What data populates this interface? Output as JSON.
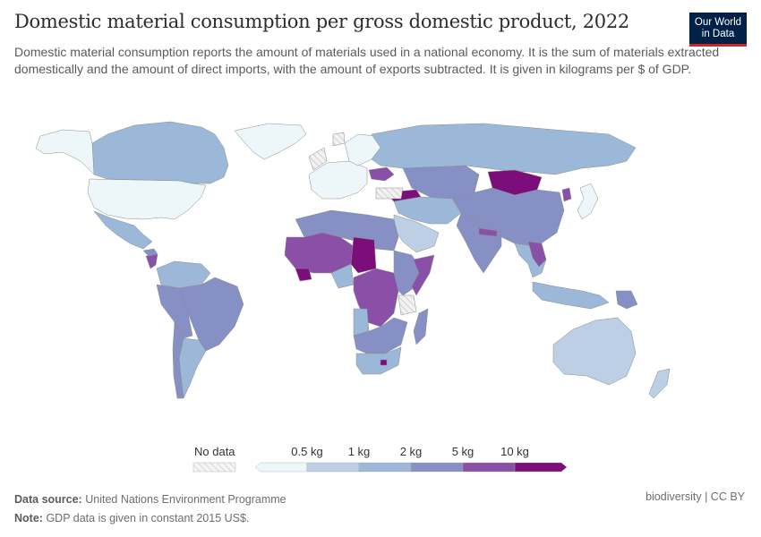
{
  "header": {
    "title": "Domestic material consumption per gross domestic product, 2022",
    "subtitle": "Domestic material consumption reports the amount of materials used in a national economy. It is the sum of materials extracted domestically and the amount of direct imports, with the amount of exports subtracted. It is given in kilograms per $ of GDP.",
    "logo_line1": "Our World",
    "logo_line2": "in Data"
  },
  "legend": {
    "no_data_label": "No data",
    "bins": [
      {
        "label": "",
        "color": "#edf7fa"
      },
      {
        "label": "0.5 kg",
        "color": "#bccfe4"
      },
      {
        "label": "1 kg",
        "color": "#9bb8d8"
      },
      {
        "label": "2 kg",
        "color": "#8790c4"
      },
      {
        "label": "5 kg",
        "color": "#8a4fa6"
      },
      {
        "label": "10 kg",
        "color": "#7b0e7b"
      }
    ],
    "ticks": [
      "0.5 kg",
      "1 kg",
      "2 kg",
      "5 kg",
      "10 kg"
    ]
  },
  "colors": {
    "no_data": "#e6e6e6",
    "bin0": "#edf7fa",
    "bin1": "#bccfe4",
    "bin2": "#9bb8d8",
    "bin3": "#8790c4",
    "bin4": "#8a4fa6",
    "bin5": "#7b0e7b"
  },
  "regions": [
    {
      "name": "Greenland",
      "bin": 0
    },
    {
      "name": "Canada",
      "bin": 2
    },
    {
      "name": "Alaska (United States)",
      "bin": 0
    },
    {
      "name": "United States",
      "bin": 0
    },
    {
      "name": "Mexico",
      "bin": 2
    },
    {
      "name": "Nicaragua",
      "bin": 4
    },
    {
      "name": "Honduras",
      "bin": 3
    },
    {
      "name": "Colombia/Venezuela",
      "bin": 2
    },
    {
      "name": "Brazil",
      "bin": 3
    },
    {
      "name": "Peru/Bolivia",
      "bin": 3
    },
    {
      "name": "Argentina",
      "bin": 2
    },
    {
      "name": "Chile",
      "bin": 3
    },
    {
      "name": "Western Europe",
      "bin": 0
    },
    {
      "name": "Nordics",
      "bin": 0
    },
    {
      "name": "Russia",
      "bin": 2
    },
    {
      "name": "Ukraine",
      "bin": 4
    },
    {
      "name": "Turkey",
      "bin": 5
    },
    {
      "name": "Kazakhstan/Central Asia",
      "bin": 3
    },
    {
      "name": "Mongolia",
      "bin": 5
    },
    {
      "name": "China",
      "bin": 3
    },
    {
      "name": "North Korea",
      "bin": 4
    },
    {
      "name": "Japan",
      "bin": 0
    },
    {
      "name": "India",
      "bin": 3
    },
    {
      "name": "Nepal",
      "bin": 4
    },
    {
      "name": "Southeast Asia",
      "bin": 2
    },
    {
      "name": "Cambodia/Laos",
      "bin": 4
    },
    {
      "name": "Indonesia",
      "bin": 2
    },
    {
      "name": "Papua New Guinea",
      "bin": 3
    },
    {
      "name": "Australia",
      "bin": 1
    },
    {
      "name": "New Zealand",
      "bin": 1
    },
    {
      "name": "Saudi Arabia",
      "bin": 1
    },
    {
      "name": "Middle East",
      "bin": 2
    },
    {
      "name": "North Africa",
      "bin": 3
    },
    {
      "name": "Sahel West",
      "bin": 4
    },
    {
      "name": "Chad",
      "bin": 5
    },
    {
      "name": "Guinea",
      "bin": 5
    },
    {
      "name": "Nigeria",
      "bin": 2
    },
    {
      "name": "Central Africa",
      "bin": 4
    },
    {
      "name": "East Africa",
      "bin": 3
    },
    {
      "name": "Somalia",
      "bin": 4
    },
    {
      "name": "Tanzania",
      "bin": -1
    },
    {
      "name": "Angola",
      "bin": 2
    },
    {
      "name": "Southern Africa",
      "bin": 3
    },
    {
      "name": "South Africa",
      "bin": 2
    },
    {
      "name": "Lesotho",
      "bin": 5
    },
    {
      "name": "Madagascar",
      "bin": 3
    }
  ],
  "footer": {
    "source_label": "Data source:",
    "source_value": "United Nations Environment Programme",
    "note_label": "Note:",
    "note_value": "GDP data is given in constant 2015 US$.",
    "license": "biodiversity | CC BY"
  }
}
